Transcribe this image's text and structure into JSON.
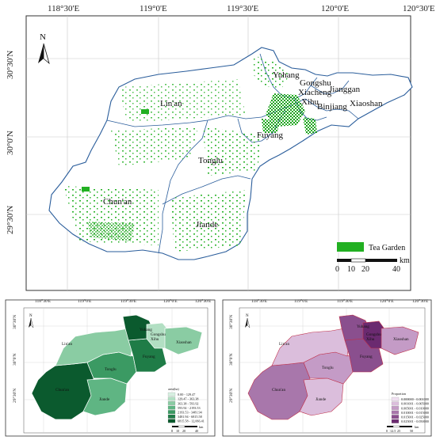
{
  "main_map": {
    "top_coords": [
      "118°30'E",
      "119°0'E",
      "119°30'E",
      "120°0'E",
      "120°30'E"
    ],
    "left_coords": [
      "30°30'N",
      "30°0'N",
      "29°30'N"
    ],
    "north_label": "N",
    "districts": [
      "Yuhang",
      "Gongshu",
      "Jianggan",
      "Xiacheng",
      "Xihu",
      "Binjiang",
      "Xiaoshan",
      "Lin'an",
      "Fuyang",
      "Tonglu",
      "Chun'an",
      "Jiande"
    ],
    "legend_label": "Tea Garden",
    "legend_color": "#22b022",
    "scale_ticks": [
      "0",
      "10",
      "20",
      "40"
    ],
    "scale_unit": "km"
  },
  "area_map": {
    "top_coords": [
      "118°30'E",
      "119°0'E",
      "119°30'E",
      "120°0'E",
      "120°30'E"
    ],
    "left_coords": [
      "30°30'N",
      "30°0'N",
      "29°30'N"
    ],
    "legend_title": "area(ha)",
    "legend_items": [
      "0.00 - 129.47",
      "129.47 - 363.38",
      "363.38 - 593.92",
      "593.92 - 2193.53",
      "2193.53 - 3481.94",
      "3481.94 - 6815.58",
      "6815.58 - 12,066.41"
    ],
    "legend_colors": [
      "#d6efe0",
      "#b2dfc3",
      "#8acca3",
      "#5fb583",
      "#3b9a63",
      "#1f7c47",
      "#0b5a2e"
    ],
    "scale_ticks": [
      "0",
      "10",
      "20",
      "40"
    ],
    "scale_unit": "km"
  },
  "proportion_map": {
    "top_coords": [
      "118°30'E",
      "119°0'E",
      "119°30'E",
      "120°0'E",
      "120°30'E"
    ],
    "left_coords": [
      "30°30'N",
      "30°0'N",
      "29°30'N"
    ],
    "legend_title": "Proportion",
    "legend_items": [
      "0.000000 - 0.001000",
      "0.001001 - 0.005000",
      "0.005001 - 0.010000",
      "0.010001 - 0.015000",
      "0.015001 - 0.025000",
      "0.025001 - 0.050000"
    ],
    "legend_colors": [
      "#efdff0",
      "#dbbedc",
      "#c49bc6",
      "#a877ab",
      "#8a4f8e",
      "#6b2a70"
    ],
    "scale_ticks": [
      "0",
      "12.5",
      "25",
      "50"
    ],
    "scale_unit": "km"
  }
}
